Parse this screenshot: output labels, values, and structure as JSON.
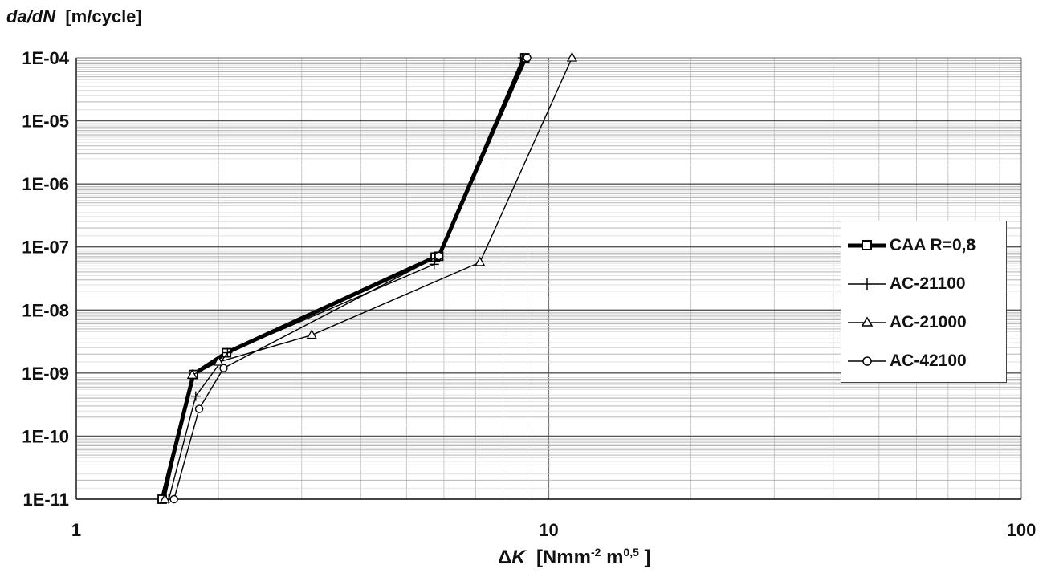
{
  "chart_data": {
    "type": "line",
    "xlabel": {
      "prefix": "Δ",
      "var": "K",
      "unit_open": "[Nmm",
      "exp1": "-2",
      "unit_mid": " m",
      "exp2": "0,5",
      "unit_close": " ]"
    },
    "ylabel": {
      "var": "da/dN",
      "unit": "[m/cycle]"
    },
    "x_scale": "log",
    "y_scale": "log",
    "xlim": [
      1,
      100
    ],
    "ylim": [
      1e-11,
      0.0001
    ],
    "x_ticks": [
      {
        "value": 1,
        "label": "1"
      },
      {
        "value": 10,
        "label": "10"
      },
      {
        "value": 100,
        "label": "100"
      }
    ],
    "y_ticks": [
      {
        "value": 0.0001,
        "label": "1E-04"
      },
      {
        "value": 1e-05,
        "label": "1E-05"
      },
      {
        "value": 1e-06,
        "label": "1E-06"
      },
      {
        "value": 1e-07,
        "label": "1E-07"
      },
      {
        "value": 1e-08,
        "label": "1E-08"
      },
      {
        "value": 1e-09,
        "label": "1E-09"
      },
      {
        "value": 1e-10,
        "label": "1E-10"
      },
      {
        "value": 1e-11,
        "label": "1E-11"
      }
    ],
    "grid": true,
    "legend_position": "right",
    "series": [
      {
        "name": "CAA R=0,8",
        "marker": "square",
        "color": "#000000",
        "width": "thick",
        "x": [
          1.52,
          1.77,
          2.08,
          5.75,
          5.85,
          8.9
        ],
        "y": [
          1e-11,
          9.5e-10,
          2.1e-09,
          6.9e-08,
          7.1e-08,
          0.0001
        ]
      },
      {
        "name": "AC-21100",
        "marker": "plus",
        "color": "#000000",
        "width": "thin",
        "x": [
          1.57,
          1.79,
          2.09,
          5.72,
          8.8
        ],
        "y": [
          1e-11,
          4.3e-10,
          2.1e-09,
          5.3e-08,
          0.0001
        ]
      },
      {
        "name": "AC-21000",
        "marker": "triangle",
        "color": "#000000",
        "width": "thin",
        "x": [
          1.54,
          1.76,
          2.0,
          3.15,
          7.15,
          11.2
        ],
        "y": [
          1e-11,
          9.3e-10,
          1.5e-09,
          4e-09,
          5.7e-08,
          0.0001
        ]
      },
      {
        "name": "AC-42100",
        "marker": "circle",
        "color": "#000000",
        "width": "thin",
        "x": [
          1.61,
          1.82,
          2.05,
          5.85,
          9.0
        ],
        "y": [
          1e-11,
          2.7e-10,
          1.2e-09,
          7.2e-08,
          0.0001
        ]
      }
    ]
  }
}
